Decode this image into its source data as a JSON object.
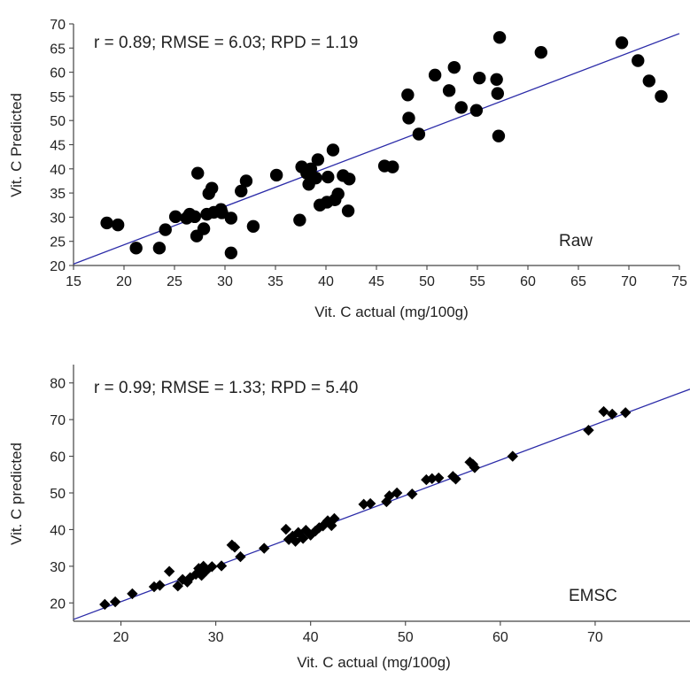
{
  "chart_data": [
    {
      "type": "scatter",
      "marker": "circle",
      "xlabel": "Vit. C actual (mg/100g)",
      "ylabel": "Vit. C Predicted",
      "annotation": "r = 0.89; RMSE = 6.03; RPD = 1.19",
      "label": "Raw",
      "xlim": [
        15,
        75
      ],
      "ylim": [
        20,
        70
      ],
      "xticks": [
        15,
        20,
        25,
        30,
        35,
        40,
        45,
        50,
        55,
        60,
        65,
        70,
        75
      ],
      "yticks": [
        20,
        25,
        30,
        35,
        40,
        45,
        50,
        55,
        60,
        65,
        70
      ],
      "grid": false,
      "fit_line": {
        "x": [
          15,
          75
        ],
        "y": [
          20.3,
          68.0
        ]
      },
      "points": [
        [
          18.3,
          28.8
        ],
        [
          19.4,
          28.4
        ],
        [
          21.2,
          23.6
        ],
        [
          23.5,
          23.6
        ],
        [
          24.1,
          27.4
        ],
        [
          25.1,
          30.1
        ],
        [
          26.2,
          29.8
        ],
        [
          26.5,
          30.6
        ],
        [
          27.0,
          30.1
        ],
        [
          27.2,
          26.1
        ],
        [
          27.3,
          39.1
        ],
        [
          27.9,
          27.6
        ],
        [
          28.2,
          30.6
        ],
        [
          28.4,
          34.9
        ],
        [
          28.7,
          36.0
        ],
        [
          28.9,
          31.0
        ],
        [
          29.6,
          31.6
        ],
        [
          29.7,
          30.9
        ],
        [
          30.6,
          29.8
        ],
        [
          30.6,
          22.6
        ],
        [
          31.6,
          35.4
        ],
        [
          32.1,
          37.5
        ],
        [
          32.8,
          28.1
        ],
        [
          35.1,
          38.7
        ],
        [
          37.4,
          29.4
        ],
        [
          37.6,
          40.4
        ],
        [
          38.1,
          39.1
        ],
        [
          38.3,
          36.8
        ],
        [
          38.5,
          40.0
        ],
        [
          39.0,
          38.1
        ],
        [
          39.2,
          41.9
        ],
        [
          39.4,
          32.5
        ],
        [
          40.1,
          33.1
        ],
        [
          40.2,
          38.3
        ],
        [
          40.7,
          43.9
        ],
        [
          40.9,
          33.6
        ],
        [
          41.2,
          34.8
        ],
        [
          41.7,
          38.6
        ],
        [
          42.2,
          31.3
        ],
        [
          42.3,
          37.9
        ],
        [
          45.8,
          40.6
        ],
        [
          46.6,
          40.4
        ],
        [
          48.1,
          55.3
        ],
        [
          48.2,
          50.5
        ],
        [
          49.2,
          47.2
        ],
        [
          50.8,
          59.4
        ],
        [
          52.2,
          56.2
        ],
        [
          52.7,
          61.0
        ],
        [
          53.4,
          52.7
        ],
        [
          54.9,
          52.1
        ],
        [
          55.2,
          58.8
        ],
        [
          56.9,
          58.5
        ],
        [
          57.0,
          55.6
        ],
        [
          57.1,
          46.8
        ],
        [
          57.2,
          67.2
        ],
        [
          61.3,
          64.1
        ],
        [
          69.3,
          66.1
        ],
        [
          70.9,
          62.4
        ],
        [
          72.0,
          58.2
        ],
        [
          73.2,
          55.0
        ]
      ]
    },
    {
      "type": "scatter",
      "marker": "diamond",
      "xlabel": "Vit. C actual (mg/100g)",
      "ylabel": "Vit. C predicted",
      "annotation": "r = 0.99; RMSE = 1.33; RPD = 5.40",
      "label": "EMSC",
      "xlim": [
        15,
        80
      ],
      "ylim": [
        15,
        85
      ],
      "xticks": [
        20,
        30,
        40,
        50,
        60,
        70
      ],
      "yticks": [
        20,
        30,
        40,
        50,
        60,
        70,
        80
      ],
      "grid": false,
      "fit_line": {
        "x": [
          15,
          80
        ],
        "y": [
          15.5,
          78.3
        ]
      },
      "points": [
        [
          18.3,
          19.6
        ],
        [
          19.4,
          20.3
        ],
        [
          21.2,
          22.5
        ],
        [
          23.5,
          24.4
        ],
        [
          24.1,
          24.8
        ],
        [
          25.1,
          28.6
        ],
        [
          26.0,
          24.6
        ],
        [
          26.5,
          26.4
        ],
        [
          27.0,
          25.7
        ],
        [
          27.3,
          26.9
        ],
        [
          27.9,
          27.8
        ],
        [
          28.2,
          29.4
        ],
        [
          28.5,
          27.5
        ],
        [
          28.7,
          30.0
        ],
        [
          29.0,
          28.8
        ],
        [
          29.6,
          29.9
        ],
        [
          30.6,
          30.1
        ],
        [
          31.7,
          35.8
        ],
        [
          32.0,
          35.2
        ],
        [
          32.6,
          32.6
        ],
        [
          35.1,
          34.9
        ],
        [
          37.4,
          40.1
        ],
        [
          37.7,
          37.3
        ],
        [
          38.1,
          38.2
        ],
        [
          38.4,
          36.8
        ],
        [
          38.7,
          39.2
        ],
        [
          39.2,
          37.6
        ],
        [
          39.5,
          39.8
        ],
        [
          40.0,
          38.5
        ],
        [
          40.5,
          39.6
        ],
        [
          40.9,
          40.5
        ],
        [
          41.3,
          41.0
        ],
        [
          41.8,
          42.4
        ],
        [
          42.2,
          41.1
        ],
        [
          42.5,
          43.0
        ],
        [
          45.6,
          46.9
        ],
        [
          46.3,
          47.1
        ],
        [
          48.0,
          47.6
        ],
        [
          48.3,
          49.2
        ],
        [
          49.1,
          50.0
        ],
        [
          50.7,
          49.7
        ],
        [
          52.2,
          53.6
        ],
        [
          52.8,
          53.9
        ],
        [
          53.5,
          54.1
        ],
        [
          55.0,
          54.5
        ],
        [
          55.3,
          53.8
        ],
        [
          56.8,
          58.4
        ],
        [
          57.1,
          57.8
        ],
        [
          57.3,
          56.9
        ],
        [
          61.3,
          60.0
        ],
        [
          69.3,
          67.1
        ],
        [
          70.9,
          72.2
        ],
        [
          71.8,
          71.5
        ],
        [
          73.2,
          71.9
        ]
      ]
    }
  ]
}
